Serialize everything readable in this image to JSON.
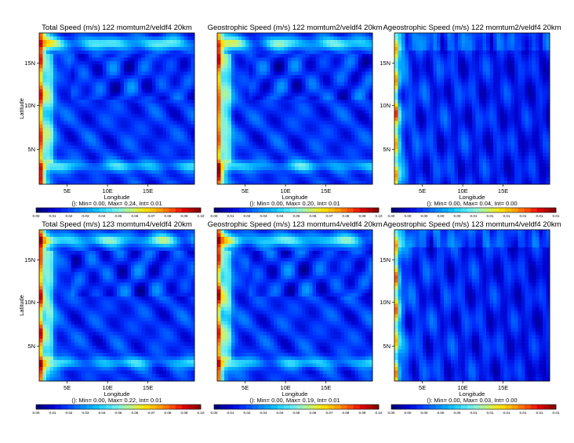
{
  "figure": {
    "colorbar_palette": [
      "#00007a",
      "#0000d0",
      "#0033ff",
      "#0077ff",
      "#00b0ff",
      "#33dcff",
      "#7df2e6",
      "#c2f47c",
      "#ffe600",
      "#ffaa00",
      "#ff5500",
      "#e00000",
      "#8c0000"
    ]
  },
  "chart_data": [
    {
      "type": "heatmap",
      "title": "Total Speed (m/s) 122 momtum2/veldf4 20km",
      "xlabel": "Longitude",
      "ylabel": "Latitude",
      "xticks": [
        "5E",
        "10E",
        "15E"
      ],
      "yticks": [
        "5N",
        "10N",
        "15N"
      ],
      "stats": "(): Min= 0.00, Max= 0.24, Int= 0.01",
      "colorbar_ticks": [
        "0.00",
        "0.01",
        "0.02",
        "0.03",
        "0.04",
        "0.05",
        "0.06",
        "0.07",
        "0.08",
        "0.09",
        "0.10"
      ],
      "kind": "total",
      "value_min": 0.0,
      "value_max": 0.24,
      "interval": 0.01
    },
    {
      "type": "heatmap",
      "title": "Geostrophic Speed (m/s) 122 momtum2/veldf4 20km",
      "xlabel": "Longitude",
      "ylabel": "",
      "xticks": [
        "5E",
        "10E",
        "15E"
      ],
      "yticks": [],
      "stats": "(): Min= 0.00, Max= 0.20, Int= 0.01",
      "colorbar_ticks": [
        "0.00",
        "0.01",
        "0.02",
        "0.03",
        "0.04",
        "0.05",
        "0.06",
        "0.07",
        "0.08",
        "0.09",
        "0.10"
      ],
      "kind": "geo",
      "value_min": 0.0,
      "value_max": 0.2,
      "interval": 0.01
    },
    {
      "type": "heatmap",
      "title": "Ageostrophic Speed (m/s) 122 momtum2/veldf4 20km",
      "xlabel": "Longitude",
      "ylabel": "",
      "xticks": [
        "5E",
        "10E",
        "15E"
      ],
      "yticks": [
        "5N",
        "10N",
        "15N"
      ],
      "stats": "(): Min= 0.00, Max= 0.04, Int= 0.00",
      "colorbar_ticks": [
        "0.00",
        "0.00",
        "0.00",
        "0.00",
        "0.00",
        "0.01",
        "0.01",
        "0.01",
        "0.01",
        "0.01",
        "0.01"
      ],
      "kind": "ageo",
      "value_min": 0.0,
      "value_max": 0.04,
      "interval": 0.0
    },
    {
      "type": "heatmap",
      "title": "Total Speed (m/s) 123 momtum4/veldf4 20km",
      "xlabel": "Longitude",
      "ylabel": "Latitude",
      "xticks": [
        "5E",
        "10E",
        "15E"
      ],
      "yticks": [
        "5N",
        "10N",
        "15N"
      ],
      "stats": "(): Min= 0.00, Max= 0.22, Int= 0.01",
      "colorbar_ticks": [
        "0.00",
        "0.01",
        "0.02",
        "0.03",
        "0.04",
        "0.05",
        "0.06",
        "0.07",
        "0.08",
        "0.09",
        "0.10"
      ],
      "kind": "total",
      "value_min": 0.0,
      "value_max": 0.22,
      "interval": 0.01
    },
    {
      "type": "heatmap",
      "title": "Geostrophic Speed (m/s) 123 momtum4/veldf4 20km",
      "xlabel": "Longitude",
      "ylabel": "",
      "xticks": [
        "5E",
        "10E",
        "15E"
      ],
      "yticks": [],
      "stats": "(): Min= 0.00, Max= 0.19, Int= 0.01",
      "colorbar_ticks": [
        "0.00",
        "0.01",
        "0.02",
        "0.03",
        "0.04",
        "0.05",
        "0.06",
        "0.07",
        "0.08",
        "0.09",
        "0.10"
      ],
      "kind": "geo",
      "value_min": 0.0,
      "value_max": 0.19,
      "interval": 0.01
    },
    {
      "type": "heatmap",
      "title": "Ageostrophic Speed (m/s) 123 momtum4/veldf4 20km",
      "xlabel": "Longitude",
      "ylabel": "",
      "xticks": [
        "5E",
        "10E",
        "15E"
      ],
      "yticks": [
        "5N",
        "10N",
        "15N"
      ],
      "stats": "(): Min= 0.00, Max= 0.03, Int= 0.00",
      "colorbar_ticks": [
        "0.00",
        "0.00",
        "0.00",
        "0.00",
        "0.00",
        "0.01",
        "0.01",
        "0.01",
        "0.01",
        "0.01",
        "0.01"
      ],
      "kind": "ageo",
      "value_min": 0.0,
      "value_max": 0.03,
      "interval": 0.0
    }
  ]
}
